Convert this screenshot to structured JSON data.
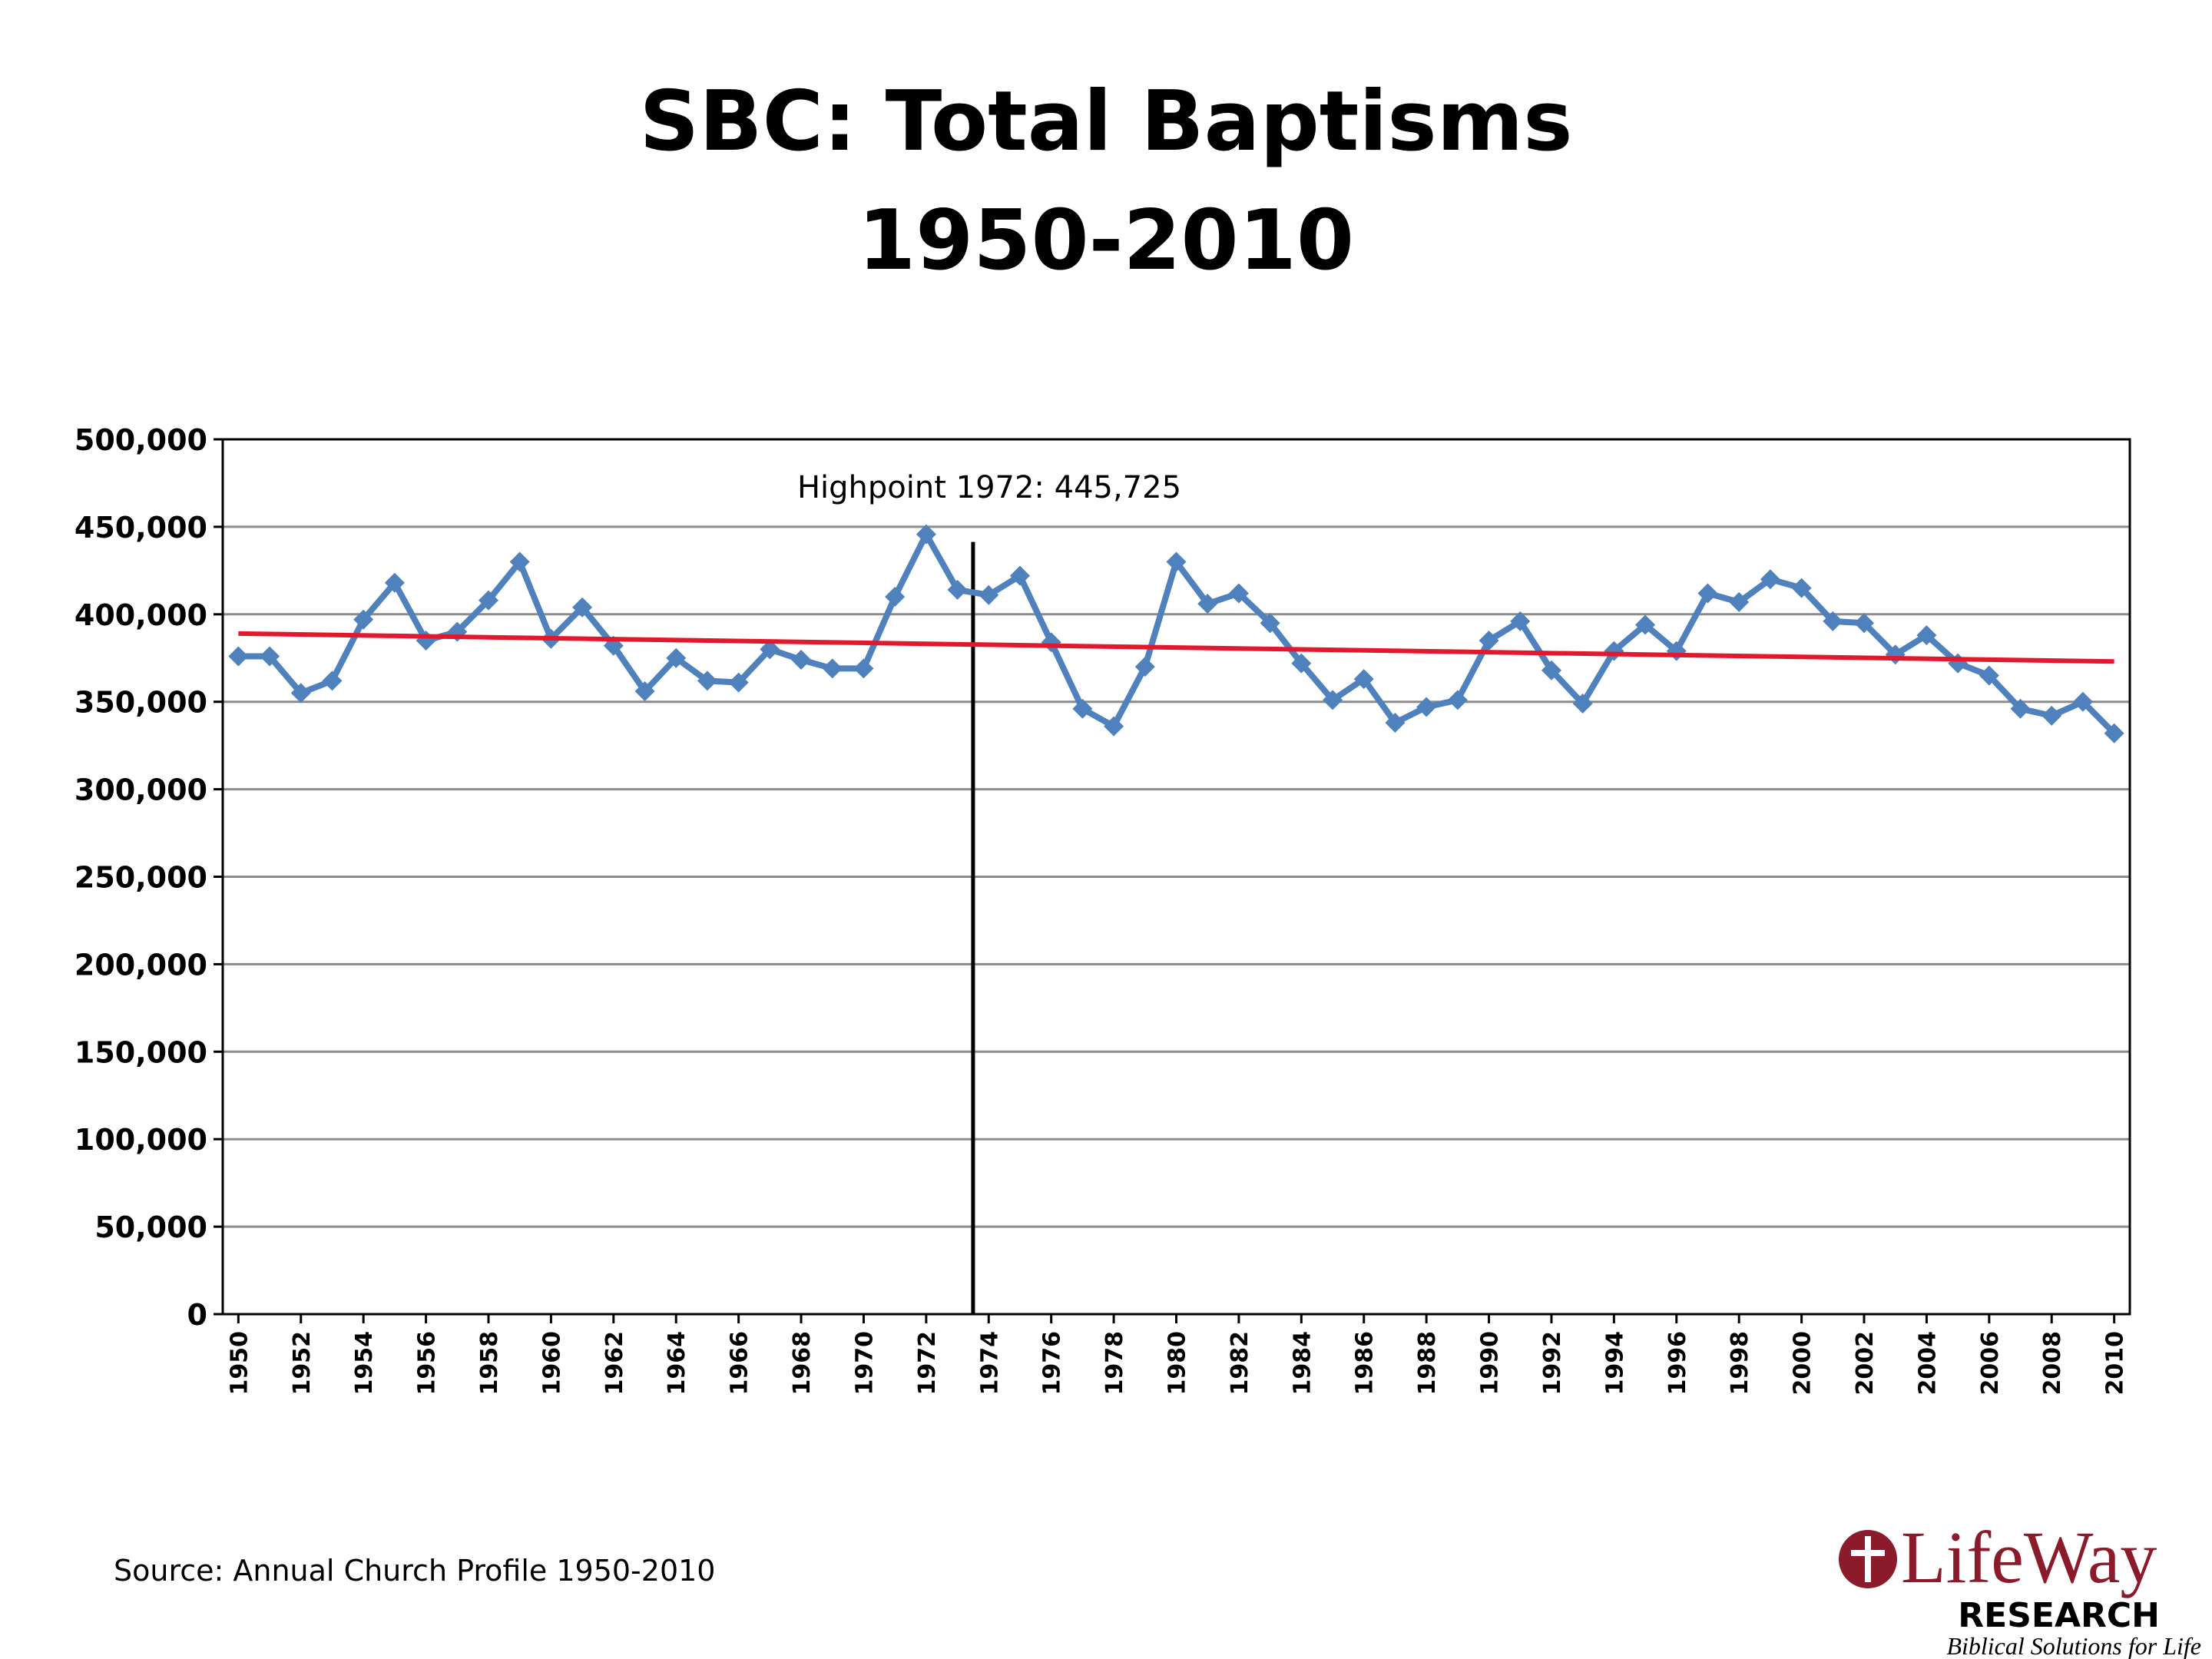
{
  "chart_data": {
    "type": "line",
    "title": "SBC: Total Baptisms",
    "subtitle": "1950-2010",
    "annotation": "Highpoint 1972:  445,725",
    "marker_x": 1973.5,
    "source": "Source: Annual Church Profile 1950-2010",
    "logo": {
      "name": "LifeWay",
      "line": "RESEARCH",
      "tagline": "Biblical Solutions for Life"
    },
    "x": [
      1950,
      1951,
      1952,
      1953,
      1954,
      1955,
      1956,
      1957,
      1958,
      1959,
      1960,
      1961,
      1962,
      1963,
      1964,
      1965,
      1966,
      1967,
      1968,
      1969,
      1970,
      1971,
      1972,
      1973,
      1974,
      1975,
      1976,
      1977,
      1978,
      1979,
      1980,
      1981,
      1982,
      1983,
      1984,
      1985,
      1986,
      1987,
      1988,
      1989,
      1990,
      1991,
      1992,
      1993,
      1994,
      1995,
      1996,
      1997,
      1998,
      1999,
      2000,
      2001,
      2002,
      2003,
      2004,
      2005,
      2006,
      2007,
      2008,
      2009,
      2010
    ],
    "series": [
      {
        "color": "#4f81bd",
        "values": [
          376000,
          376000,
          355000,
          362000,
          397000,
          418000,
          385000,
          390000,
          408000,
          430000,
          386000,
          404000,
          382000,
          356000,
          375000,
          362000,
          361000,
          380000,
          374000,
          369000,
          369000,
          410000,
          445725,
          414000,
          411000,
          422000,
          384000,
          346000,
          336000,
          370000,
          430000,
          406000,
          412000,
          395000,
          372000,
          351000,
          363000,
          338000,
          347000,
          351000,
          385000,
          396000,
          368000,
          349000,
          379000,
          394000,
          379000,
          412000,
          407000,
          420000,
          415000,
          396000,
          395000,
          377000,
          388000,
          372000,
          365000,
          346000,
          342000,
          350000,
          332000
        ]
      }
    ],
    "trend": {
      "color": "#e3182d",
      "x": [
        1950,
        2010
      ],
      "values": [
        389000,
        373000
      ]
    },
    "xlim": [
      1949.5,
      2010.5
    ],
    "xticks": [
      1950,
      1952,
      1954,
      1956,
      1958,
      1960,
      1962,
      1964,
      1966,
      1968,
      1970,
      1972,
      1974,
      1976,
      1978,
      1980,
      1982,
      1984,
      1986,
      1988,
      1990,
      1992,
      1994,
      1996,
      1998,
      2000,
      2002,
      2004,
      2006,
      2008,
      2010
    ],
    "ylim": [
      0,
      500000
    ],
    "yticks": [
      0,
      {
        "value": 50000,
        "label": "50,000"
      },
      {
        "value": 100000,
        "label": "100,000"
      },
      {
        "value": 150000,
        "label": "150,000"
      },
      {
        "value": 200000,
        "label": "200,000"
      },
      {
        "value": 250000,
        "label": "250,000"
      },
      {
        "value": 300000,
        "label": "300,000"
      },
      {
        "value": 350000,
        "label": "350,000"
      },
      {
        "value": 400000,
        "label": "400,000"
      },
      {
        "value": 450000,
        "label": "450,000"
      },
      {
        "value": 500000,
        "label": "500,000"
      }
    ],
    "grid": true
  }
}
